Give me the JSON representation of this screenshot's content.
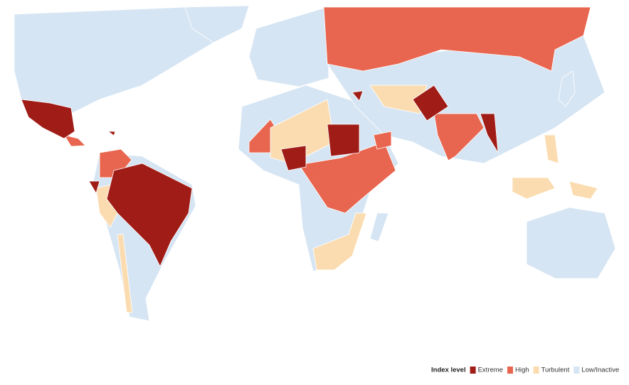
{
  "legend": {
    "title": "Index level",
    "items": [
      {
        "label": "Extreme",
        "color": "#a01c17"
      },
      {
        "label": "High",
        "color": "#e8664f"
      },
      {
        "label": "Turbulent",
        "color": "#fbdcb0"
      },
      {
        "label": "Low/Inactive",
        "color": "#d6e5f3"
      }
    ]
  }
}
